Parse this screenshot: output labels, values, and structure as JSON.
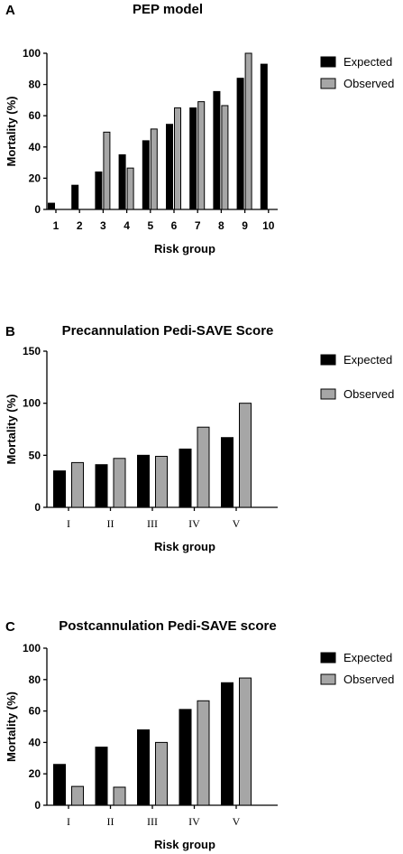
{
  "chart_data": [
    {
      "type": "bar",
      "panel": "A",
      "title": "PEP model",
      "xlabel": "Risk group",
      "ylabel": "Mortality (%)",
      "ylim": [
        0,
        100
      ],
      "yticks": [
        "0",
        "20",
        "40",
        "60",
        "80",
        "100"
      ],
      "categories": [
        "1",
        "2",
        "3",
        "4",
        "5",
        "6",
        "7",
        "8",
        "9",
        "10"
      ],
      "series": [
        {
          "name": "Expected",
          "color": "#000000",
          "values": [
            4,
            15.5,
            24,
            35,
            44,
            54.5,
            65,
            75.5,
            84,
            93
          ]
        },
        {
          "name": "Observed",
          "color": "#a6a6a6",
          "values": [
            null,
            null,
            49.5,
            26.5,
            51.5,
            65,
            69,
            66.5,
            100,
            null
          ]
        }
      ],
      "legend_position": "right"
    },
    {
      "type": "bar",
      "panel": "B",
      "title": "Precannulation Pedi-SAVE Score",
      "xlabel": "Risk group",
      "ylabel": "Mortality (%)",
      "ylim": [
        0,
        150
      ],
      "yticks": [
        "0",
        "50",
        "100",
        "150"
      ],
      "categories": [
        "I",
        "II",
        "III",
        "IV",
        "V"
      ],
      "series": [
        {
          "name": "Expected",
          "color": "#000000",
          "values": [
            35,
            41,
            50,
            56,
            67
          ]
        },
        {
          "name": "Observed",
          "color": "#a6a6a6",
          "values": [
            43,
            47,
            49,
            77,
            100
          ]
        }
      ],
      "legend_position": "right"
    },
    {
      "type": "bar",
      "panel": "C",
      "title": "Postcannulation Pedi-SAVE score",
      "xlabel": "Risk group",
      "ylabel": "Mortality (%)",
      "ylim": [
        0,
        100
      ],
      "yticks": [
        "0",
        "20",
        "40",
        "60",
        "80",
        "100"
      ],
      "categories": [
        "I",
        "II",
        "III",
        "IV",
        "V"
      ],
      "series": [
        {
          "name": "Expected",
          "color": "#000000",
          "values": [
            26,
            37,
            48,
            61,
            78
          ]
        },
        {
          "name": "Observed",
          "color": "#a6a6a6",
          "values": [
            12,
            11.5,
            40,
            66.5,
            81
          ]
        }
      ],
      "legend_position": "right"
    }
  ]
}
